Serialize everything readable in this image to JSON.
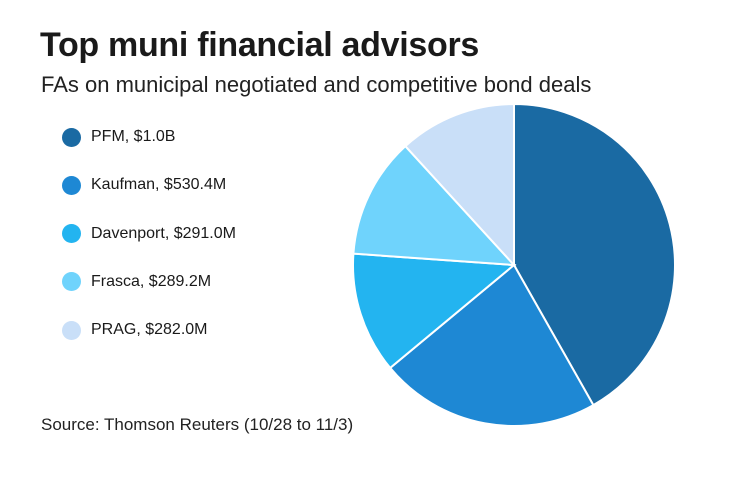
{
  "chart_data": {
    "type": "pie",
    "title": "Top muni financial advisors",
    "subtitle": "FAs on municipal negotiated and competitive bond deals",
    "source": "Source: Thomson Reuters (10/28 to 11/3)",
    "legend_position": "left",
    "slices": [
      {
        "label": "PFM, $1.0B",
        "value": 1000.0,
        "color": "#1a6aa3"
      },
      {
        "label": "Kaufman, $530.4M",
        "value": 530.4,
        "color": "#1e88d4"
      },
      {
        "label": "Davenport, $291.0M",
        "value": 291.0,
        "color": "#23b4f0"
      },
      {
        "label": "Frasca, $289.2M",
        "value": 289.2,
        "color": "#6fd3fc"
      },
      {
        "label": "PRAG, $282.0M",
        "value": 282.0,
        "color": "#c9dff8"
      }
    ]
  }
}
